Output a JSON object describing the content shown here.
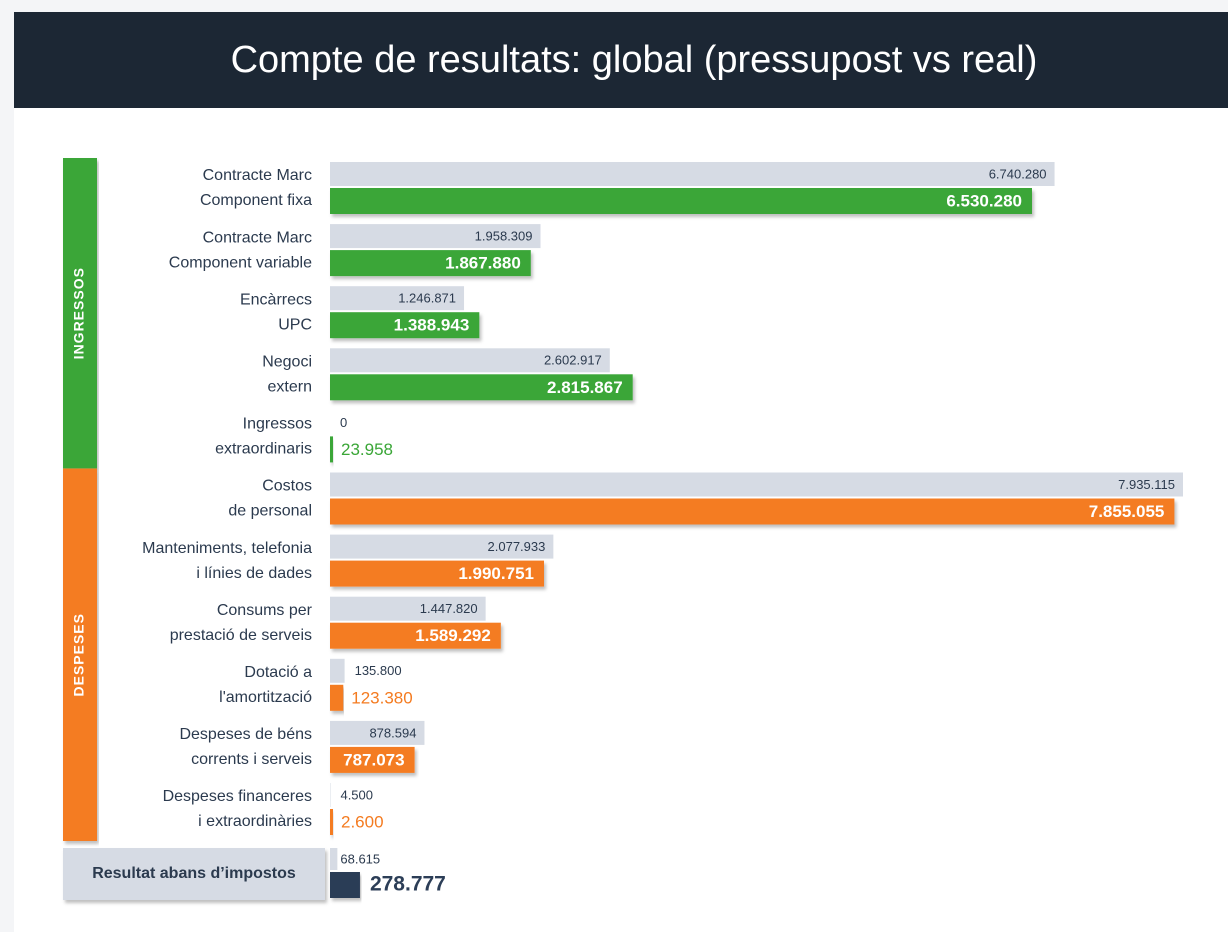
{
  "chart_data": {
    "type": "bar",
    "title": "Compte de resultats: global (pressupost vs real)",
    "budget_color": "#d6dbe4",
    "groups": [
      {
        "label": "INGRESSOS",
        "color": "#3aa637",
        "categories": [
          [
            "Contracte Marc",
            "Component fixa"
          ],
          [
            "Contracte Marc",
            "Component variable"
          ],
          [
            "Encàrrecs",
            "UPC"
          ],
          [
            "Negoci",
            "extern"
          ],
          [
            "Ingressos",
            "extraordinaris"
          ]
        ],
        "budget": [
          6740280,
          1958309,
          1246871,
          2602917,
          0
        ],
        "budget_labels": [
          "6.740.280",
          "1.958.309",
          "1.246.871",
          "2.602.917",
          "0"
        ],
        "real": [
          6530280,
          1867880,
          1388943,
          2815867,
          23958
        ],
        "real_labels": [
          "6.530.280",
          "1.867.880",
          "1.388.943",
          "2.815.867",
          "23.958"
        ]
      },
      {
        "label": "DESPESES",
        "color": "#f47b20",
        "categories": [
          [
            "Costos",
            "de personal"
          ],
          [
            "Manteniments, telefonia",
            "i línies de dades"
          ],
          [
            "Consums per",
            "prestació de serveis"
          ],
          [
            "Dotació a",
            "l'amortització"
          ],
          [
            "Despeses de béns",
            "corrents i serveis"
          ],
          [
            "Despeses financeres",
            "i extraordinàries"
          ]
        ],
        "budget": [
          7935115,
          2077933,
          1447820,
          135800,
          878594,
          4500
        ],
        "budget_labels": [
          "7.935.115",
          "2.077.933",
          "1.447.820",
          "135.800",
          "878.594",
          "4.500"
        ],
        "real": [
          7855055,
          1990751,
          1589292,
          123380,
          787073,
          2600
        ],
        "real_labels": [
          "7.855.055",
          "1.990.751",
          "1.589.292",
          "123.380",
          "787.073",
          "2.600"
        ]
      }
    ],
    "result": {
      "label": "Resultat abans d’impostos",
      "color": "#2c3e57",
      "budget": 68615,
      "budget_label": "68.615",
      "real": 278777,
      "real_label": "278.777"
    }
  }
}
